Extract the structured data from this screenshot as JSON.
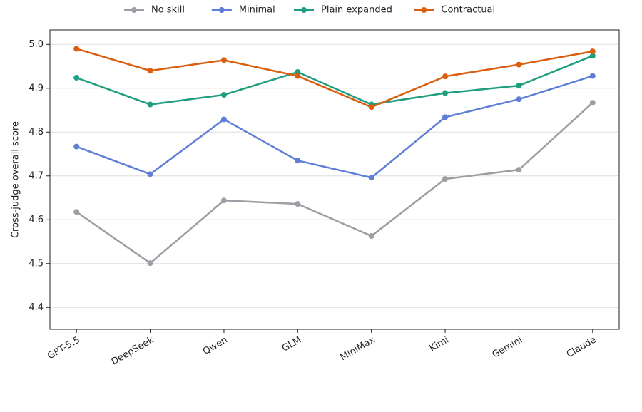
{
  "chart_data": {
    "type": "line",
    "y_label": "Cross-judge overall score",
    "categories": [
      "GPT-5.5",
      "DeepSeek",
      "Qwen",
      "GLM",
      "MiniMax",
      "Kimi",
      "Gemini",
      "Claude"
    ],
    "series": [
      {
        "name": "No skill",
        "color": "#9c9ea3",
        "values": [
          4.618,
          4.501,
          4.644,
          4.636,
          4.563,
          4.693,
          4.714,
          4.867
        ]
      },
      {
        "name": "Minimal",
        "color": "#5f7fd6",
        "values": [
          4.767,
          4.704,
          4.829,
          4.735,
          4.696,
          4.834,
          4.875,
          4.928
        ]
      },
      {
        "name": "Plain expanded",
        "color": "#1f9e80",
        "values": [
          4.924,
          4.863,
          4.885,
          4.937,
          4.863,
          4.889,
          4.906,
          4.974
        ]
      },
      {
        "name": "Contractual",
        "color": "#d95f0e",
        "values": [
          4.99,
          4.94,
          4.964,
          4.928,
          4.857,
          4.927,
          4.954,
          4.984
        ]
      }
    ],
    "ylim": [
      4.35,
      5.033
    ],
    "yticks": [
      {
        "value": 4.4,
        "label": "4.4"
      },
      {
        "value": 4.5,
        "label": "4.5"
      },
      {
        "value": 4.6,
        "label": "4.6"
      },
      {
        "value": 4.7,
        "label": "4.7"
      },
      {
        "value": 4.8,
        "label": "4.8"
      },
      {
        "value": 4.9,
        "label": "4.9"
      },
      {
        "value": 5.0,
        "label": "5.0"
      }
    ],
    "grid": true,
    "legend": "top"
  }
}
